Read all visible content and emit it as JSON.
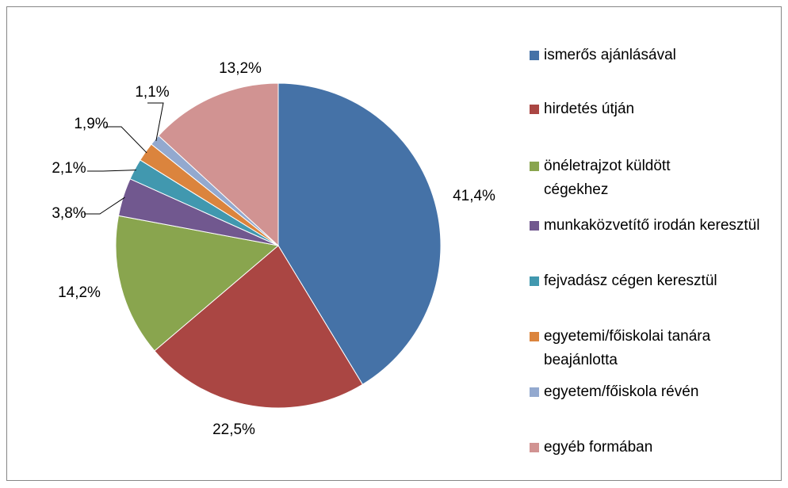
{
  "chart_data": {
    "type": "pie",
    "categories": [
      "ismerős ajánlásával",
      "hirdetés útján",
      "önéletrajzot küldött cégekhez",
      "munkaközvetítő irodán keresztül",
      "fejvadász cégen keresztül",
      "egyetemi/főiskolai tanára beajánlotta",
      "egyetem/főiskola révén",
      "egyéb formában"
    ],
    "values": [
      41.4,
      22.5,
      14.2,
      3.8,
      2.1,
      1.9,
      1.1,
      13.2
    ],
    "value_labels": [
      "41,4%",
      "22,5%",
      "14,2%",
      "3,8%",
      "2,1%",
      "1,9%",
      "1,1%",
      "13,2%"
    ],
    "colors": [
      "#4572a7",
      "#aa4643",
      "#89a54e",
      "#71588f",
      "#4198af",
      "#db843d",
      "#93a9cf",
      "#d19392"
    ],
    "legend": "right"
  }
}
